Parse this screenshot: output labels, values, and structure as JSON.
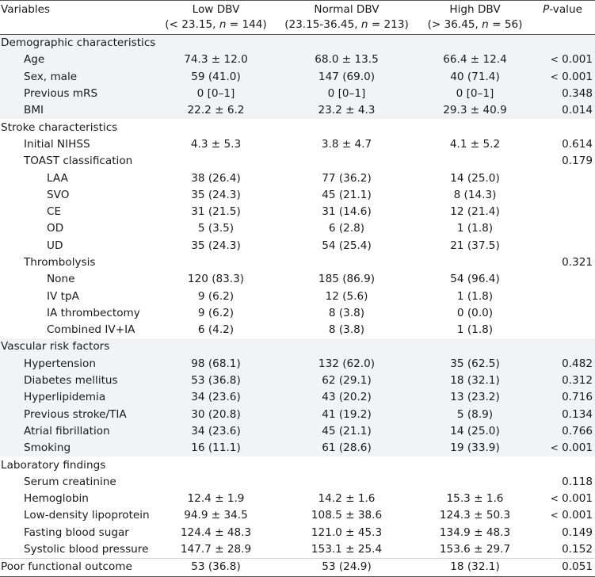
{
  "header": {
    "variables": "Variables",
    "low_dbv": "Low DBV",
    "low_range": "(< 23.15, n = 144)",
    "normal_dbv": "Normal DBV",
    "normal_range": "(23.15-36.45, n = 213)",
    "high_dbv": "High DBV",
    "high_range": "(> 36.45, n = 56)",
    "p_value": "P-value"
  },
  "rows": [
    {
      "label": "Demographic characteristics",
      "level": 0,
      "low": "",
      "normal": "",
      "high": "",
      "p": "",
      "shade": true
    },
    {
      "label": "Age",
      "level": 1,
      "low": "74.3 ± 12.0",
      "normal": "68.0 ± 13.5",
      "high": "66.4 ± 12.4",
      "p": "< 0.001",
      "shade": true
    },
    {
      "label": "Sex, male",
      "level": 1,
      "low": "59 (41.0)",
      "normal": "147 (69.0)",
      "high": "40 (71.4)",
      "p": "< 0.001",
      "shade": true
    },
    {
      "label": "Previous mRS",
      "level": 1,
      "low": "0 [0–1]",
      "normal": "0 [0–1]",
      "high": "0 [0–1]",
      "p": "0.348",
      "shade": true
    },
    {
      "label": "BMI",
      "level": 1,
      "low": "22.2 ± 6.2",
      "normal": "23.2 ± 4.3",
      "high": "29.3 ± 40.9",
      "p": "0.014",
      "shade": true
    },
    {
      "label": "Stroke characteristics",
      "level": 0,
      "low": "",
      "normal": "",
      "high": "",
      "p": "",
      "shade": false
    },
    {
      "label": "Initial NIHSS",
      "level": 1,
      "low": "4.3 ± 5.3",
      "normal": "3.8 ± 4.7",
      "high": "4.1 ± 5.2",
      "p": "0.614",
      "shade": false
    },
    {
      "label": "TOAST classification",
      "level": 1,
      "low": "",
      "normal": "",
      "high": "",
      "p": "0.179",
      "shade": false
    },
    {
      "label": "LAA",
      "level": 2,
      "low": "38 (26.4)",
      "normal": "77 (36.2)",
      "high": "14 (25.0)",
      "p": "",
      "shade": false
    },
    {
      "label": "SVO",
      "level": 2,
      "low": "35 (24.3)",
      "normal": "45 (21.1)",
      "high": "8 (14.3)",
      "p": "",
      "shade": false
    },
    {
      "label": "CE",
      "level": 2,
      "low": "31 (21.5)",
      "normal": "31 (14.6)",
      "high": "12 (21.4)",
      "p": "",
      "shade": false
    },
    {
      "label": "OD",
      "level": 2,
      "low": "5 (3.5)",
      "normal": "6 (2.8)",
      "high": "1 (1.8)",
      "p": "",
      "shade": false
    },
    {
      "label": "UD",
      "level": 2,
      "low": "35 (24.3)",
      "normal": "54 (25.4)",
      "high": "21 (37.5)",
      "p": "",
      "shade": false
    },
    {
      "label": "Thrombolysis",
      "level": 1,
      "low": "",
      "normal": "",
      "high": "",
      "p": "0.321",
      "shade": false
    },
    {
      "label": "None",
      "level": 2,
      "low": "120 (83.3)",
      "normal": "185 (86.9)",
      "high": "54 (96.4)",
      "p": "",
      "shade": false
    },
    {
      "label": "IV tpA",
      "level": 2,
      "low": "9 (6.2)",
      "normal": "12 (5.6)",
      "high": "1 (1.8)",
      "p": "",
      "shade": false
    },
    {
      "label": "IA thrombectomy",
      "level": 2,
      "low": "9 (6.2)",
      "normal": "8 (3.8)",
      "high": "0 (0.0)",
      "p": "",
      "shade": false
    },
    {
      "label": "Combined IV+IA",
      "level": 2,
      "low": "6 (4.2)",
      "normal": "8 (3.8)",
      "high": "1 (1.8)",
      "p": "",
      "shade": false
    },
    {
      "label": "Vascular risk factors",
      "level": 0,
      "low": "",
      "normal": "",
      "high": "",
      "p": "",
      "shade": true
    },
    {
      "label": "Hypertension",
      "level": 1,
      "low": "98 (68.1)",
      "normal": "132 (62.0)",
      "high": "35 (62.5)",
      "p": "0.482",
      "shade": true
    },
    {
      "label": "Diabetes mellitus",
      "level": 1,
      "low": "53 (36.8)",
      "normal": "62 (29.1)",
      "high": "18 (32.1)",
      "p": "0.312",
      "shade": true
    },
    {
      "label": "Hyperlipidemia",
      "level": 1,
      "low": "34 (23.6)",
      "normal": "43 (20.2)",
      "high": "13 (23.2)",
      "p": "0.716",
      "shade": true
    },
    {
      "label": "Previous stroke/TIA",
      "level": 1,
      "low": "30 (20.8)",
      "normal": "41 (19.2)",
      "high": "5 (8.9)",
      "p": "0.134",
      "shade": true
    },
    {
      "label": "Atrial fibrillation",
      "level": 1,
      "low": "34 (23.6)",
      "normal": "45 (21.1)",
      "high": "14 (25.0)",
      "p": "0.766",
      "shade": true
    },
    {
      "label": "Smoking",
      "level": 1,
      "low": "16 (11.1)",
      "normal": "61 (28.6)",
      "high": "19 (33.9)",
      "p": "< 0.001",
      "shade": true
    },
    {
      "label": "Laboratory findings",
      "level": 0,
      "low": "",
      "normal": "",
      "high": "",
      "p": "",
      "shade": false
    },
    {
      "label": "Serum creatinine",
      "level": 1,
      "low": "",
      "normal": "",
      "high": "",
      "p": "0.118",
      "shade": false
    },
    {
      "label": "Hemoglobin",
      "level": 1,
      "low": "12.4 ± 1.9",
      "normal": "14.2 ± 1.6",
      "high": "15.3 ± 1.6",
      "p": "< 0.001",
      "shade": false
    },
    {
      "label": "Low-density lipoprotein",
      "level": 1,
      "low": "94.9 ± 34.5",
      "normal": "108.5 ± 38.6",
      "high": "124.3 ± 50.3",
      "p": "< 0.001",
      "shade": false
    },
    {
      "label": "Fasting blood sugar",
      "level": 1,
      "low": "124.4 ± 48.3",
      "normal": "121.0 ± 45.3",
      "high": "134.9 ± 48.3",
      "p": "0.149",
      "shade": false
    },
    {
      "label": "Systolic blood pressure",
      "level": 1,
      "low": "147.7 ± 28.9",
      "normal": "153.1 ± 25.4",
      "high": "153.6 ± 29.7",
      "p": "0.152",
      "shade": false
    },
    {
      "label": "Poor functional outcome",
      "level": 0,
      "low": "53 (36.8)",
      "normal": "53 (24.9)",
      "high": "18 (32.1)",
      "p": "0.051",
      "shade": false
    }
  ]
}
